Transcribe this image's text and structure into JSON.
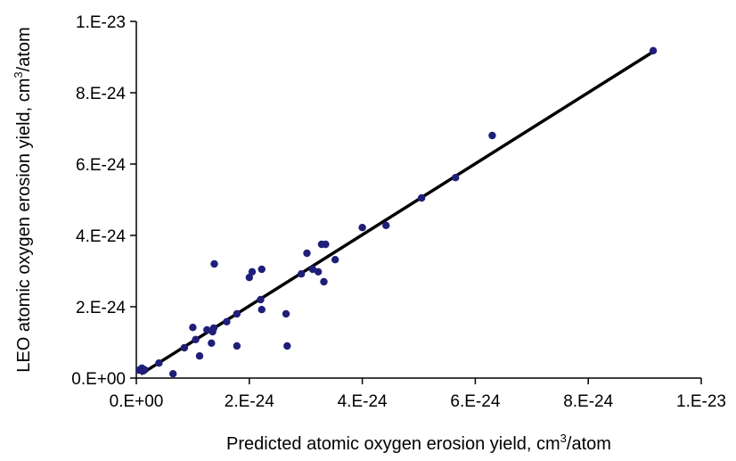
{
  "chart_data": {
    "type": "scatter",
    "title": "",
    "xlabel": {
      "before": "Predicted atomic oxygen erosion yield, cm",
      "sup": "3",
      "after": "/atom"
    },
    "ylabel": {
      "before": "LEO atomic oxygen erosion yield, cm",
      "sup": "3",
      "after": "/atom"
    },
    "xlim": [
      0,
      1e-23
    ],
    "ylim": [
      0,
      1e-23
    ],
    "x_ticks": [
      0,
      2e-24,
      4e-24,
      6e-24,
      8e-24,
      1e-23
    ],
    "x_tick_labels": [
      "0.E+00",
      "2.E-24",
      "4.E-24",
      "6.E-24",
      "8.E-24",
      "1.E-23"
    ],
    "y_ticks": [
      0,
      2e-24,
      4e-24,
      6e-24,
      8e-24,
      1e-23
    ],
    "y_tick_labels": [
      "0.E+00",
      "2.E-24",
      "4.E-24",
      "6.E-24",
      "8.E-24",
      "1.E-23"
    ],
    "grid": false,
    "legend": "none",
    "marker_color": "#1f1f7a",
    "line_color": "#000000",
    "points": [
      {
        "x": 5e-26,
        "y": 2.2e-25
      },
      {
        "x": 8e-26,
        "y": 2.5e-25
      },
      {
        "x": 1.2e-25,
        "y": 2e-25
      },
      {
        "x": 1e-25,
        "y": 2.8e-25
      },
      {
        "x": 1.5e-25,
        "y": 2.3e-25
      },
      {
        "x": 4e-25,
        "y": 4.2e-25
      },
      {
        "x": 6.5e-25,
        "y": 1.2e-25
      },
      {
        "x": 8.5e-25,
        "y": 8.5e-25
      },
      {
        "x": 1e-24,
        "y": 1.42e-24
      },
      {
        "x": 1.05e-24,
        "y": 1.08e-24
      },
      {
        "x": 1.12e-24,
        "y": 6.2e-25
      },
      {
        "x": 1.25e-24,
        "y": 1.35e-24
      },
      {
        "x": 1.33e-24,
        "y": 9.8e-25
      },
      {
        "x": 1.35e-24,
        "y": 1.3e-24
      },
      {
        "x": 1.37e-24,
        "y": 1.4e-24
      },
      {
        "x": 1.38e-24,
        "y": 3.2e-24
      },
      {
        "x": 1.6e-24,
        "y": 1.58e-24
      },
      {
        "x": 1.78e-24,
        "y": 9e-25
      },
      {
        "x": 1.78e-24,
        "y": 1.8e-24
      },
      {
        "x": 2e-24,
        "y": 2.82e-24
      },
      {
        "x": 2.05e-24,
        "y": 2.98e-24
      },
      {
        "x": 2.2e-24,
        "y": 2.2e-24
      },
      {
        "x": 2.22e-24,
        "y": 1.92e-24
      },
      {
        "x": 2.22e-24,
        "y": 3.05e-24
      },
      {
        "x": 2.65e-24,
        "y": 1.8e-24
      },
      {
        "x": 2.67e-24,
        "y": 9e-25
      },
      {
        "x": 2.92e-24,
        "y": 2.92e-24
      },
      {
        "x": 3.02e-24,
        "y": 3.5e-24
      },
      {
        "x": 3.12e-24,
        "y": 3.05e-24
      },
      {
        "x": 3.22e-24,
        "y": 2.98e-24
      },
      {
        "x": 3.28e-24,
        "y": 3.75e-24
      },
      {
        "x": 3.32e-24,
        "y": 2.7e-24
      },
      {
        "x": 3.35e-24,
        "y": 3.75e-24
      },
      {
        "x": 3.52e-24,
        "y": 3.32e-24
      },
      {
        "x": 4e-24,
        "y": 4.22e-24
      },
      {
        "x": 4.42e-24,
        "y": 4.28e-24
      },
      {
        "x": 5.05e-24,
        "y": 5.05e-24
      },
      {
        "x": 5.65e-24,
        "y": 5.62e-24
      },
      {
        "x": 6.3e-24,
        "y": 6.8e-24
      },
      {
        "x": 9.15e-24,
        "y": 9.18e-24
      }
    ],
    "trendline": {
      "x": [
        1e-25,
        9.15e-24
      ],
      "y": [
        1.3e-25,
        9.15e-24
      ]
    }
  }
}
